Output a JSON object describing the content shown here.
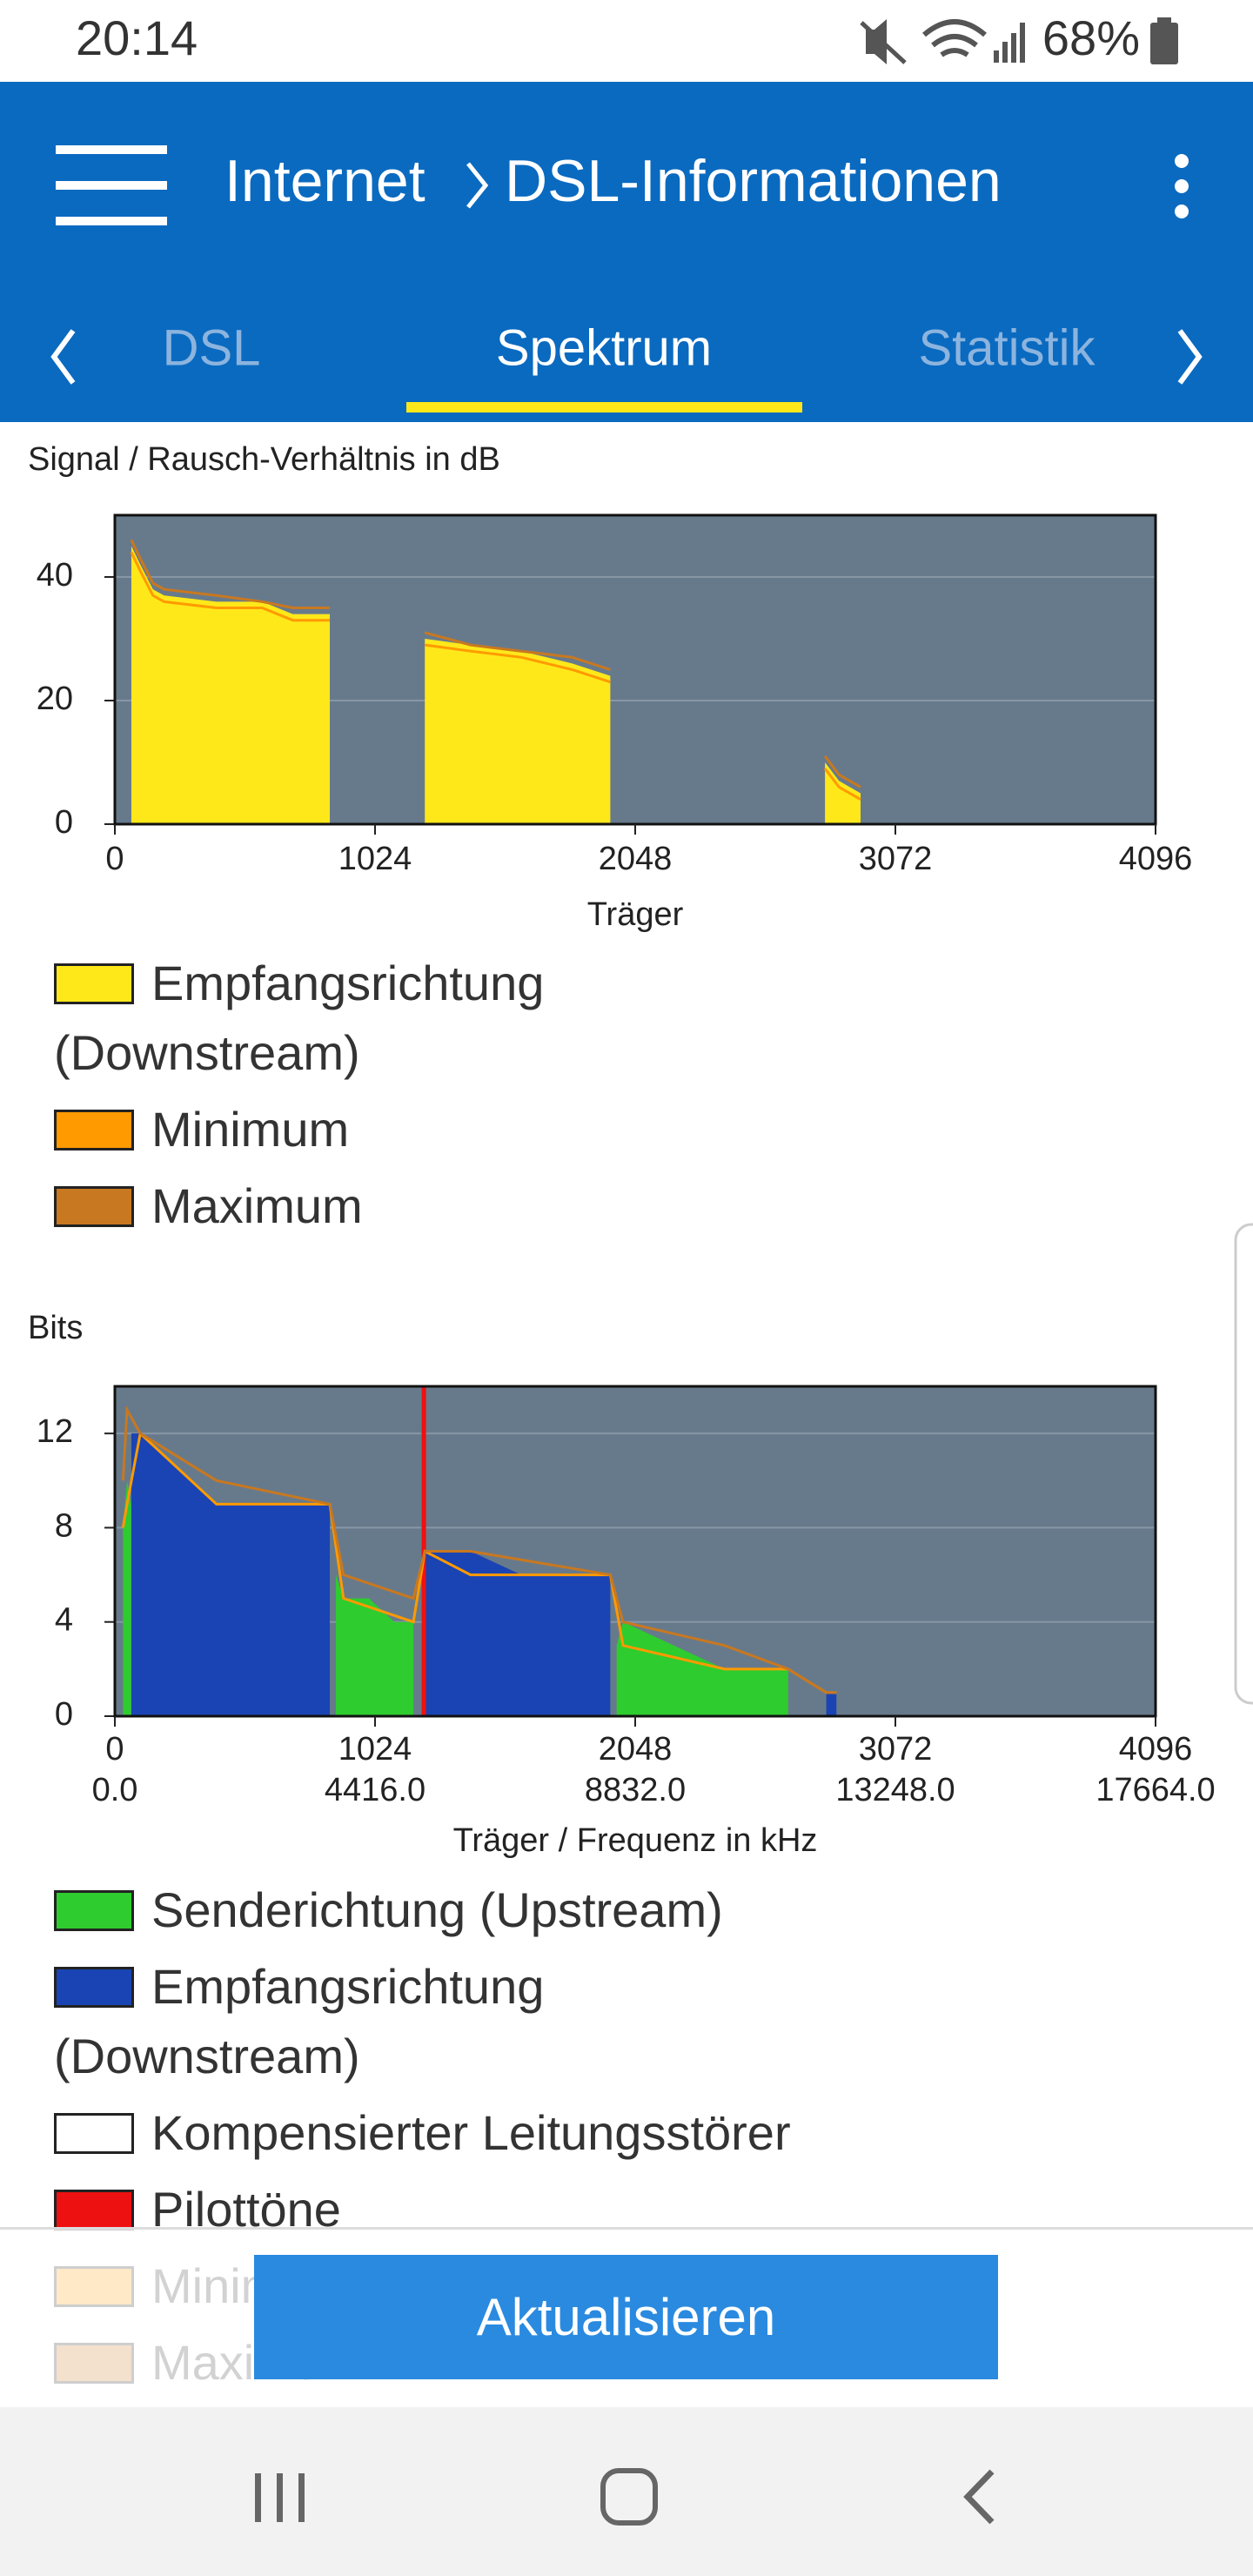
{
  "status_bar": {
    "time": "20:14",
    "battery": "68%"
  },
  "header": {
    "breadcrumb": [
      "Internet",
      "DSL-Informationen"
    ]
  },
  "tabs": {
    "items": [
      "DSL",
      "Spektrum",
      "Statistik"
    ],
    "active": 1
  },
  "chart_data": [
    {
      "type": "area",
      "title": "Signal / Rausch-Verhältnis in dB",
      "xlabel": "Träger",
      "xlim": [
        0,
        4096
      ],
      "xticks": [
        0,
        1024,
        2048,
        3072,
        4096
      ],
      "ylim": [
        0,
        50
      ],
      "yticks": [
        0,
        20,
        40
      ],
      "grid": true,
      "series": [
        {
          "name": "Empfangsrichtung (Downstream)",
          "color": "#ffe81a",
          "style": "area",
          "x": [
            65,
            100,
            150,
            194,
            400,
            580,
            700,
            846,
            1000,
            1220,
            1400,
            1600,
            1800,
            1950,
            2400,
            2795,
            2850,
            2935
          ],
          "values": [
            45,
            42,
            38,
            37,
            36,
            36,
            34,
            34,
            null,
            30,
            29,
            28,
            26,
            24,
            null,
            10,
            7,
            5
          ]
        },
        {
          "name": "Minimum",
          "color": "#ff9a00",
          "style": "line",
          "x": [
            65,
            100,
            150,
            194,
            400,
            580,
            700,
            846,
            1000,
            1220,
            1400,
            1600,
            1800,
            1950,
            2400,
            2795,
            2850,
            2935
          ],
          "values": [
            44,
            41,
            37,
            36,
            35,
            35,
            33,
            33,
            null,
            29,
            28,
            27,
            25,
            23,
            null,
            9,
            6,
            4
          ]
        },
        {
          "name": "Maximum",
          "color": "#c87820",
          "style": "line",
          "x": [
            65,
            100,
            150,
            194,
            400,
            580,
            700,
            846,
            1000,
            1220,
            1400,
            1600,
            1800,
            1950,
            2400,
            2795,
            2850,
            2935
          ],
          "values": [
            46,
            43,
            39,
            38,
            37,
            36,
            35,
            35,
            null,
            31,
            29,
            28,
            27,
            25,
            null,
            11,
            8,
            6
          ]
        }
      ]
    },
    {
      "type": "area",
      "title": "Bits",
      "xlabel": "Träger / Frequenz in kHz",
      "xlim": [
        0,
        4096
      ],
      "xticks": [
        0,
        1024,
        2048,
        3072,
        4096
      ],
      "x2lim": [
        0,
        17664
      ],
      "x2ticks": [
        {
          "value": 0,
          "label": "0.0"
        },
        {
          "value": 4416,
          "label": "4416.0"
        },
        {
          "value": 8832,
          "label": "8832.0"
        },
        {
          "value": 13248,
          "label": "13248.0"
        },
        {
          "value": 17664,
          "label": "17664.0"
        }
      ],
      "ylim": [
        0,
        14
      ],
      "yticks": [
        0,
        4,
        8,
        12
      ],
      "grid": true,
      "series": [
        {
          "name": "Senderichtung (Upstream)",
          "color": "#2ecc2e",
          "style": "area",
          "x": [
            32,
            48,
            64,
            500,
            870,
            900,
            1000,
            1100,
            1175,
            1500,
            1975,
            2000,
            2200,
            2400,
            2500,
            2650
          ],
          "values": [
            8,
            10,
            9,
            null,
            6,
            5,
            5,
            4,
            4,
            null,
            3,
            4,
            3,
            2,
            2,
            2
          ]
        },
        {
          "name": "Empfangsrichtung (Downstream)",
          "color": "#1a44b4",
          "style": "area",
          "x": [
            65,
            100,
            200,
            400,
            600,
            846,
            1000,
            1220,
            1400,
            1600,
            1700,
            1950,
            2300,
            2800,
            2840
          ],
          "values": [
            12,
            12,
            11,
            9,
            9,
            9,
            null,
            7,
            7,
            6,
            6,
            6,
            null,
            1,
            1
          ]
        },
        {
          "name": "Kompensierter Leitungsstörer",
          "color": "#ffffff",
          "style": "area",
          "x": [],
          "values": []
        },
        {
          "name": "Pilottöne",
          "color": "#ee1111",
          "style": "vline",
          "x": [
            1216
          ]
        },
        {
          "name": "Minimum",
          "color": "#ff9a00",
          "style": "line",
          "x": [
            32,
            48,
            100,
            400,
            846,
            900,
            1175,
            1220,
            1400,
            1950,
            2000,
            2400,
            2650,
            2800,
            2840
          ],
          "values": [
            8,
            9,
            12,
            9,
            9,
            5,
            4,
            7,
            6,
            6,
            3,
            2,
            2,
            1,
            1
          ]
        },
        {
          "name": "Maximum",
          "color": "#c87820",
          "style": "line",
          "x": [
            32,
            48,
            100,
            400,
            846,
            900,
            1175,
            1220,
            1400,
            1950,
            2000,
            2400,
            2650,
            2800,
            2840
          ],
          "values": [
            10,
            13,
            12,
            10,
            9,
            6,
            5,
            7,
            7,
            6,
            4,
            3,
            2,
            1,
            1
          ]
        }
      ]
    }
  ],
  "button": "Aktualisieren"
}
